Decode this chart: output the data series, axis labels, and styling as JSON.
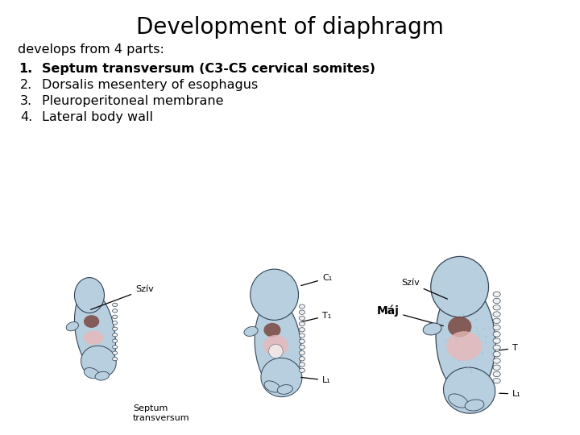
{
  "title": "Development of diaphragm",
  "title_fontsize": 20,
  "title_fontweight": "normal",
  "subtitle": "develops from 4 parts:",
  "subtitle_fontsize": 11.5,
  "items": [
    {
      "num": "1.",
      "text": "Septum transversum (C3-C5 cervical somites)",
      "bold": true
    },
    {
      "num": "2.",
      "text": "Dorsalis mesentery of esophagus",
      "bold": false
    },
    {
      "num": "3.",
      "text": "Pleuroperitoneal membrane",
      "bold": false
    },
    {
      "num": "4.",
      "text": "Lateral body wall",
      "bold": false
    }
  ],
  "item_fontsize": 11.5,
  "background_color": "#ffffff",
  "text_color": "#000000",
  "embryo_blue_light": "#b8cfe0",
  "embryo_blue_mid": "#93b8d0",
  "embryo_blue_dark": "#7aa8c5",
  "embryo_outline": "#334455",
  "pink_color": "#e8b8b8",
  "brown_color": "#7a4840",
  "spine_white": "#f0f0f0",
  "label_fontsize": 8,
  "label_bold_fontsize": 10
}
